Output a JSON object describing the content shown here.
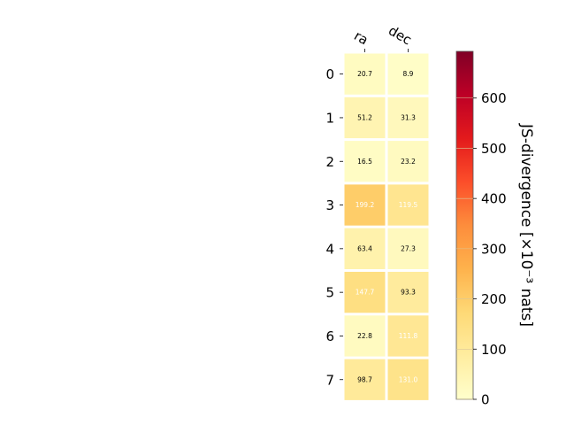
{
  "chart_data": {
    "type": "heatmap",
    "columns": [
      "ra",
      "dec"
    ],
    "rows": [
      "0",
      "1",
      "2",
      "3",
      "4",
      "5",
      "6",
      "7"
    ],
    "values": [
      [
        20.7,
        8.9
      ],
      [
        51.2,
        31.3
      ],
      [
        16.5,
        23.2
      ],
      [
        199.2,
        119.5
      ],
      [
        63.4,
        27.3
      ],
      [
        147.7,
        93.3
      ],
      [
        22.8,
        111.8
      ],
      [
        98.7,
        131.0
      ]
    ],
    "cell_labels": [
      [
        "20.7",
        "8.9"
      ],
      [
        "51.2",
        "31.3"
      ],
      [
        "16.5",
        "23.2"
      ],
      [
        "199.2",
        "119.5"
      ],
      [
        "63.4",
        "27.3"
      ],
      [
        "147.7",
        "93.3"
      ],
      [
        "22.8",
        "111.8"
      ],
      [
        "98.7",
        "131.0"
      ]
    ],
    "colorbar": {
      "label": "JS-divergence [×10⁻³ nats]",
      "range": [
        0,
        693
      ],
      "ticks": [
        0,
        100,
        200,
        300,
        400,
        500,
        600
      ],
      "colormap": "YlOrRd",
      "colors": [
        "#ffffcc",
        "#ffeda0",
        "#fed976",
        "#feb24c",
        "#fd8d3c",
        "#fc4e2a",
        "#e31a1c",
        "#bd0026",
        "#800026"
      ]
    },
    "label_color_dark": "#000000",
    "label_color_light": "#ffffff"
  }
}
